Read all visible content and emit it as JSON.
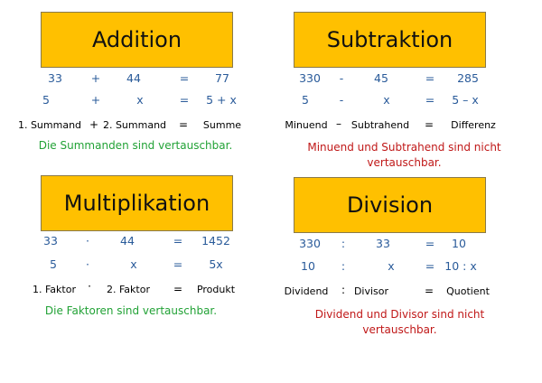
{
  "addition": {
    "title": "Addition",
    "row1": [
      "33",
      "+",
      "44",
      "=",
      "77"
    ],
    "row2": [
      "5",
      "+",
      "x",
      "=",
      "5 + x"
    ],
    "terms": [
      "1. Summand",
      "+",
      "2. Summand",
      "=",
      "Summe"
    ],
    "note": "Die Summanden sind vertauschbar."
  },
  "subtraktion": {
    "title": "Subtraktion",
    "row1": [
      "330",
      "-",
      "45",
      "=",
      "285"
    ],
    "row2": [
      "5",
      "-",
      "x",
      "=",
      "5 – x"
    ],
    "terms": [
      "Minuend",
      "–",
      "Subtrahend",
      "=",
      "Differenz"
    ],
    "note_line1": "Minuend und Subtrahend sind nicht",
    "note_line2": "vertauschbar."
  },
  "multiplikation": {
    "title": "Multiplikation",
    "row1": [
      "33",
      "·",
      "44",
      "=",
      "1452"
    ],
    "row2": [
      "5",
      "·",
      "x",
      "=",
      "5x"
    ],
    "terms": [
      "1. Faktor",
      "·",
      "2. Faktor",
      "=",
      "Produkt"
    ],
    "note": "Die Faktoren sind vertauschbar."
  },
  "division": {
    "title": "Division",
    "row1": [
      "330",
      ":",
      "33",
      "=",
      "10"
    ],
    "row2": [
      "10",
      ":",
      "x",
      "=",
      "10 : x"
    ],
    "terms": [
      "Dividend",
      ":",
      "Divisor",
      "=",
      "Quotient"
    ],
    "note_line1": "Dividend und Divisor sind nicht",
    "note_line2": "vertauschbar."
  },
  "colors": {
    "title_bg": "#ffc000",
    "number_blue": "#2a5b9a",
    "note_green": "#22a236",
    "note_red": "#c01818"
  }
}
